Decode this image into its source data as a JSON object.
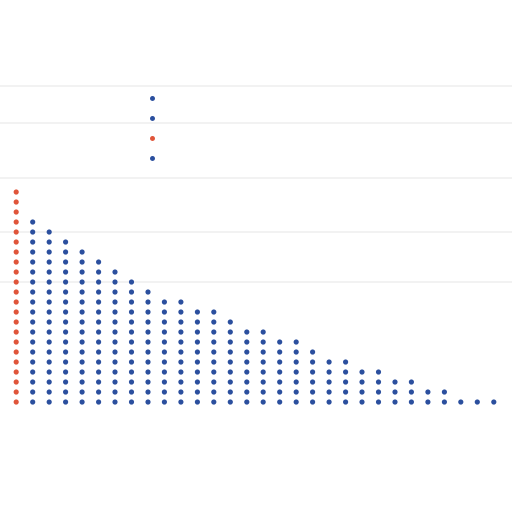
{
  "chart_data": {
    "type": "scatter",
    "title": "",
    "subtitle": "",
    "xlabel": "",
    "ylabel": "",
    "grid": true,
    "legend_position": "top-left",
    "legend": [
      {
        "label": "",
        "color": "#2b4f9e"
      },
      {
        "label": "",
        "color": "#2b4f9e"
      },
      {
        "label": "",
        "color": "#e0553a"
      },
      {
        "label": "",
        "color": "#2b4f9e"
      }
    ],
    "legend_notes": [
      "",
      ""
    ],
    "categories": [
      "",
      "",
      "",
      "",
      "",
      "",
      "",
      "",
      "",
      "",
      "",
      "",
      "",
      "",
      "",
      "",
      "",
      "",
      "",
      "",
      "",
      "",
      "",
      "",
      "",
      "",
      "",
      "",
      "",
      ""
    ],
    "series": [
      {
        "color": "#e0553a",
        "values": [
          22,
          0,
          0,
          0,
          0,
          0,
          0,
          0,
          0,
          0,
          0,
          0,
          0,
          0,
          0,
          0,
          0,
          0,
          0,
          0,
          0,
          0,
          0,
          0,
          0,
          0,
          0,
          0,
          0,
          0
        ]
      },
      {
        "color": "#2b4f9e",
        "values": [
          0,
          19,
          18,
          17,
          16,
          15,
          14,
          13,
          12,
          11,
          11,
          10,
          10,
          9,
          8,
          8,
          7,
          7,
          6,
          5,
          5,
          4,
          4,
          3,
          3,
          2,
          2,
          1,
          1,
          1
        ]
      }
    ]
  }
}
